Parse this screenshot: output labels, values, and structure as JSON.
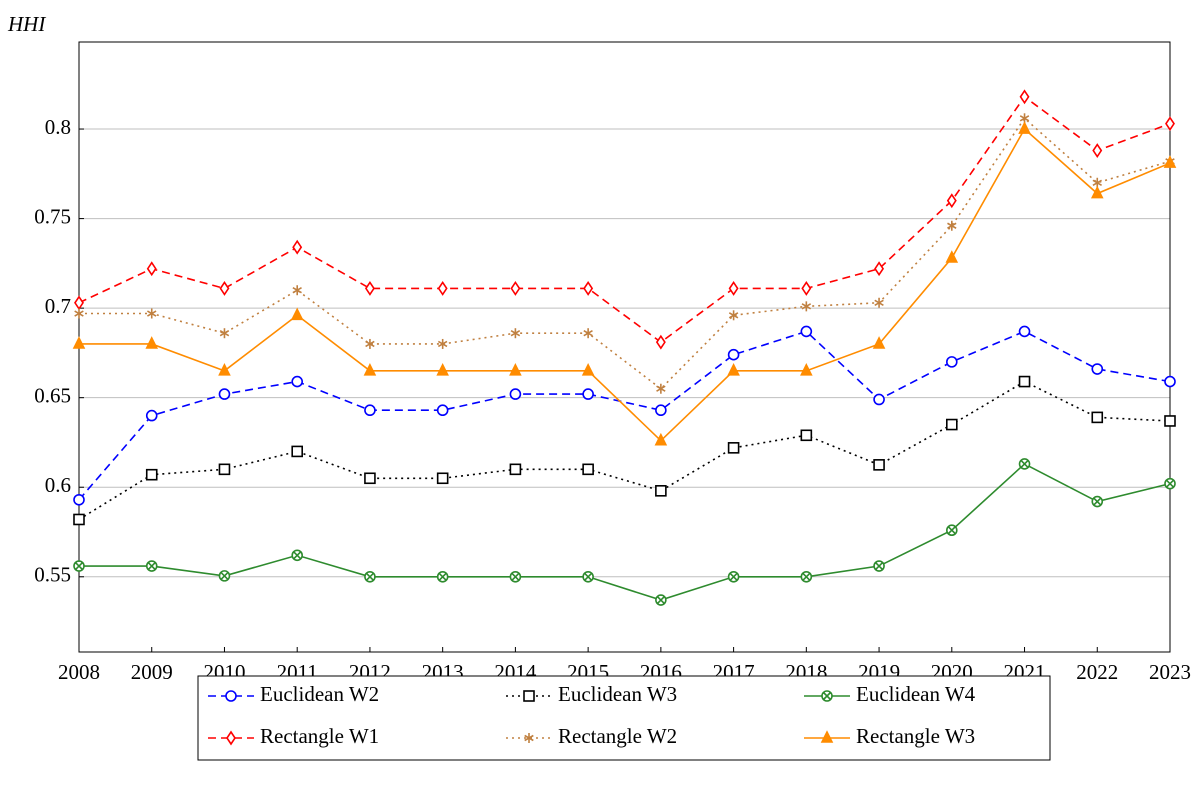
{
  "chart_data": {
    "type": "line",
    "y_label": "HHI",
    "categories": [
      "2008",
      "2009",
      "2010",
      "2011",
      "2012",
      "2013",
      "2014",
      "2015",
      "2016",
      "2017",
      "2018",
      "2019",
      "2020",
      "2021",
      "2022",
      "2023"
    ],
    "ylim": [
      0.508,
      0.8486
    ],
    "yticks": [
      0.55,
      0.6,
      0.65,
      0.7,
      0.75,
      0.8
    ],
    "grid": true,
    "legend": "bottom",
    "series": [
      {
        "name": "Euclidean W2",
        "color": "#0000ff",
        "marker": "circle",
        "dash": "dashed",
        "values": [
          0.593,
          0.64,
          0.652,
          0.659,
          0.643,
          0.643,
          0.652,
          0.652,
          0.643,
          0.674,
          0.687,
          0.649,
          0.67,
          0.687,
          0.666,
          0.659
        ]
      },
      {
        "name": "Euclidean W3",
        "color": "#000000",
        "marker": "square",
        "dash": "dotted",
        "values": [
          0.582,
          0.607,
          0.61,
          0.62,
          0.605,
          0.605,
          0.61,
          0.61,
          0.598,
          0.622,
          0.629,
          0.6125,
          0.635,
          0.659,
          0.639,
          0.637
        ]
      },
      {
        "name": "Euclidean W4",
        "color": "#2e8b2e",
        "marker": "otimes",
        "dash": "solid",
        "values": [
          0.556,
          0.556,
          0.5505,
          0.562,
          0.55,
          0.55,
          0.55,
          0.55,
          0.537,
          0.55,
          0.55,
          0.556,
          0.576,
          0.613,
          0.592,
          0.602
        ]
      },
      {
        "name": "Rectangle W1",
        "color": "#ff0000",
        "marker": "diamond",
        "dash": "dashed",
        "values": [
          0.703,
          0.722,
          0.711,
          0.734,
          0.711,
          0.711,
          0.711,
          0.711,
          0.681,
          0.711,
          0.711,
          0.722,
          0.76,
          0.818,
          0.788,
          0.803
        ]
      },
      {
        "name": "Rectangle W2",
        "color": "#c08040",
        "marker": "star",
        "dash": "dotted",
        "values": [
          0.697,
          0.697,
          0.686,
          0.71,
          0.68,
          0.68,
          0.686,
          0.686,
          0.655,
          0.696,
          0.701,
          0.703,
          0.746,
          0.806,
          0.77,
          0.782
        ]
      },
      {
        "name": "Rectangle W3",
        "color": "#ff8c00",
        "marker": "triangle",
        "dash": "solid",
        "values": [
          0.68,
          0.68,
          0.665,
          0.696,
          0.665,
          0.665,
          0.665,
          0.665,
          0.626,
          0.665,
          0.665,
          0.68,
          0.728,
          0.8,
          0.764,
          0.781
        ]
      }
    ]
  }
}
